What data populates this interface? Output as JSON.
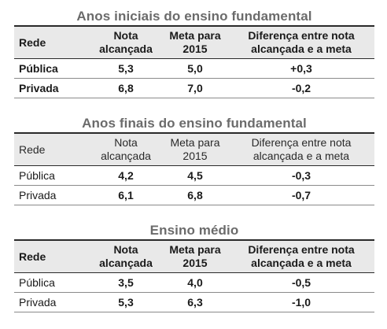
{
  "sections": [
    {
      "title": "Anos iniciais do ensino fundamental",
      "headers": {
        "rede": "Rede",
        "nota_1": "Nota",
        "nota_2": "alcançada",
        "meta_1": "Meta para",
        "meta_2": "2015",
        "dif_1": "Diferença entre nota",
        "dif_2": "alcançada e a meta"
      },
      "rows": [
        {
          "rede": "Pública",
          "nota": "5,3",
          "meta": "5,0",
          "diferenca": "+0,3"
        },
        {
          "rede": "Privada",
          "nota": "6,8",
          "meta": "7,0",
          "diferenca": "-0,2"
        }
      ]
    },
    {
      "title": "Anos finais do ensino fundamental",
      "headers": {
        "rede": "Rede",
        "nota_1": "Nota",
        "nota_2": "alcançada",
        "meta_1": "Meta para",
        "meta_2": "2015",
        "dif_1": "Diferença entre nota",
        "dif_2": "alcançada e a meta"
      },
      "rows": [
        {
          "rede": "Pública",
          "nota": "4,2",
          "meta": "4,5",
          "diferenca": "-0,3"
        },
        {
          "rede": "Privada",
          "nota": "6,1",
          "meta": "6,8",
          "diferenca": "-0,7"
        }
      ]
    },
    {
      "title": "Ensino médio",
      "headers": {
        "rede": "Rede",
        "nota_1": "Nota",
        "nota_2": "alcançada",
        "meta_1": "Meta para",
        "meta_2": "2015",
        "dif_1": "Diferença entre nota",
        "dif_2": "alcançada e a meta"
      },
      "rows": [
        {
          "rede": "Pública",
          "nota": "3,5",
          "meta": "4,0",
          "diferenca": "-0,5"
        },
        {
          "rede": "Privada",
          "nota": "5,3",
          "meta": "6,3",
          "diferenca": "-1,0"
        }
      ]
    }
  ]
}
